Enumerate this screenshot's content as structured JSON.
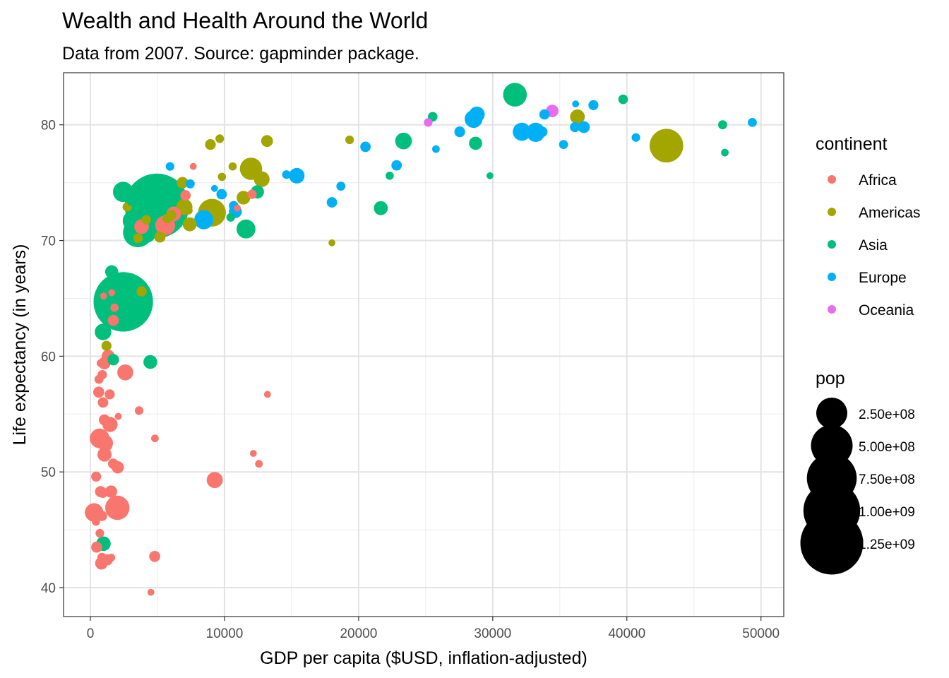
{
  "chart_data": {
    "type": "scatter",
    "title": "Wealth and Health Around the World",
    "subtitle": "Data from 2007. Source: gapminder package.",
    "xlabel": "GDP per capita ($USD, inflation-adjusted)",
    "ylabel": "Life expectancy (in years)",
    "xlim": [
      -2000,
      51700
    ],
    "ylim": [
      37.5,
      84.5
    ],
    "x_ticks": [
      0,
      10000,
      20000,
      30000,
      40000,
      50000
    ],
    "x_tick_labels": [
      "0",
      "10000",
      "20000",
      "30000",
      "40000",
      "50000"
    ],
    "y_ticks": [
      40,
      50,
      60,
      70,
      80
    ],
    "y_tick_labels": [
      "40",
      "50",
      "60",
      "70",
      "80"
    ],
    "grid": true,
    "legend_position": "right",
    "color_legend": {
      "title": "continent",
      "entries": [
        {
          "name": "Africa",
          "color": "#F8766D"
        },
        {
          "name": "Americas",
          "color": "#A3A500"
        },
        {
          "name": "Asia",
          "color": "#00BF7D"
        },
        {
          "name": "Europe",
          "color": "#00B0F6"
        },
        {
          "name": "Oceania",
          "color": "#E76BF3"
        }
      ]
    },
    "size_legend": {
      "title": "pop",
      "entries": [
        {
          "label": "2.50e+08",
          "value": 250000000
        },
        {
          "label": "5.00e+08",
          "value": 500000000
        },
        {
          "label": "7.50e+08",
          "value": 750000000
        },
        {
          "label": "1.00e+09",
          "value": 1000000000
        },
        {
          "label": "1.25e+09",
          "value": 1250000000
        }
      ]
    },
    "series": [
      {
        "name": "Africa",
        "color": "#F8766D",
        "points": [
          [
            6223,
            72.3,
            33
          ],
          [
            4797,
            42.7,
            12
          ],
          [
            1441,
            56.7,
            8
          ],
          [
            12570,
            50.7,
            2
          ],
          [
            1217,
            52.3,
            14
          ],
          [
            430,
            49.6,
            8
          ],
          [
            2042,
            50.4,
            18
          ],
          [
            706,
            44.7,
            4
          ],
          [
            1704,
            50.7,
            10
          ],
          [
            986,
            65.2,
            1
          ],
          [
            278,
            46.5,
            65
          ],
          [
            3633,
            55.3,
            4
          ],
          [
            1545,
            48.3,
            18
          ],
          [
            2082,
            54.8,
            1
          ],
          [
            5581,
            71.3,
            80
          ],
          [
            12154,
            51.6,
            1
          ],
          [
            641,
            58.0,
            5
          ],
          [
            691,
            52.9,
            77
          ],
          [
            13206,
            56.7,
            1
          ],
          [
            753,
            59.4,
            2
          ],
          [
            1327,
            60.0,
            23
          ],
          [
            943,
            56.0,
            10
          ],
          [
            579,
            46.4,
            2
          ],
          [
            1463,
            54.1,
            36
          ],
          [
            1569,
            42.6,
            2
          ],
          [
            415,
            45.7,
            3
          ],
          [
            12057,
            74.0,
            6
          ],
          [
            1045,
            59.4,
            19
          ],
          [
            759,
            48.3,
            13
          ],
          [
            1042,
            54.5,
            12
          ],
          [
            1803,
            64.2,
            3
          ],
          [
            10957,
            72.8,
            1
          ],
          [
            3820,
            71.2,
            33
          ],
          [
            824,
            42.1,
            20
          ],
          [
            4811,
            52.9,
            2
          ],
          [
            620,
            56.9,
            12
          ],
          [
            2014,
            46.9,
            135
          ],
          [
            7670,
            76.4,
            1
          ],
          [
            863,
            46.2,
            9
          ],
          [
            1598,
            65.5,
            1
          ],
          [
            1712,
            63.1,
            12
          ],
          [
            862,
            42.6,
            6
          ],
          [
            926,
            48.2,
            9
          ],
          [
            9270,
            49.3,
            44
          ],
          [
            2602,
            58.6,
            42
          ],
          [
            4513,
            39.6,
            1
          ],
          [
            1107,
            52.5,
            40
          ],
          [
            883,
            58.4,
            6
          ],
          [
            7093,
            73.9,
            10
          ],
          [
            1056,
            51.5,
            29
          ],
          [
            1271,
            42.4,
            12
          ],
          [
            470,
            43.5,
            12
          ]
        ]
      },
      {
        "name": "Americas",
        "color": "#A3A500",
        "points": [
          [
            12779,
            75.3,
            40
          ],
          [
            3822,
            65.6,
            9
          ],
          [
            9066,
            72.4,
            190
          ],
          [
            36319,
            80.7,
            33
          ],
          [
            13172,
            78.6,
            16
          ],
          [
            7007,
            72.9,
            44
          ],
          [
            9645,
            78.8,
            4
          ],
          [
            8948,
            78.3,
            11
          ],
          [
            6025,
            72.2,
            9
          ],
          [
            6873,
            75.0,
            14
          ],
          [
            5728,
            71.9,
            7
          ],
          [
            5186,
            70.3,
            13
          ],
          [
            1202,
            60.9,
            8
          ],
          [
            3548,
            70.2,
            7
          ],
          [
            7321,
            72.6,
            3
          ],
          [
            11978,
            76.2,
            108
          ],
          [
            2749,
            72.9,
            6
          ],
          [
            9809,
            75.5,
            3
          ],
          [
            4173,
            71.8,
            6
          ],
          [
            7409,
            71.4,
            28
          ],
          [
            19329,
            78.7,
            4
          ],
          [
            18009,
            69.8,
            1
          ],
          [
            42952,
            78.2,
            301
          ],
          [
            10611,
            76.4,
            3
          ],
          [
            11416,
            73.7,
            26
          ]
        ]
      },
      {
        "name": "Asia",
        "color": "#00BF7D",
        "points": [
          [
            975,
            43.8,
            32
          ],
          [
            29796,
            75.6,
            1
          ],
          [
            1391,
            64.1,
            150
          ],
          [
            1714,
            59.7,
            14
          ],
          [
            4959,
            73.0,
            1319
          ],
          [
            39725,
            82.2,
            7
          ],
          [
            2452,
            64.7,
            1110
          ],
          [
            3541,
            70.7,
            223
          ],
          [
            11606,
            71.0,
            69
          ],
          [
            4471,
            59.5,
            27
          ],
          [
            25523,
            80.7,
            7
          ],
          [
            31656,
            82.6,
            127
          ],
          [
            4519,
            72.5,
            6
          ],
          [
            1593,
            67.3,
            23
          ],
          [
            23348,
            78.6,
            49
          ],
          [
            47307,
            77.6,
            2
          ],
          [
            10461,
            72.0,
            4
          ],
          [
            12452,
            74.2,
            24
          ],
          [
            3096,
            66.8,
            3
          ],
          [
            944,
            62.1,
            47
          ],
          [
            1091,
            63.8,
            29
          ],
          [
            22316,
            75.6,
            3
          ],
          [
            2606,
            65.5,
            169
          ],
          [
            3190,
            71.7,
            91
          ],
          [
            21655,
            72.8,
            28
          ],
          [
            47143,
            80.0,
            5
          ],
          [
            3970,
            72.4,
            20
          ],
          [
            28718,
            78.4,
            23
          ],
          [
            4185,
            70.6,
            65
          ],
          [
            2442,
            74.2,
            85
          ],
          [
            3025,
            73.4,
            4
          ],
          [
            2281,
            62.7,
            22
          ]
        ]
      },
      {
        "name": "Europe",
        "color": "#00B0F6",
        "points": [
          [
            5937,
            76.4,
            4
          ],
          [
            36126,
            79.8,
            8
          ],
          [
            33693,
            79.4,
            10
          ],
          [
            7446,
            74.9,
            5
          ],
          [
            10681,
            73.0,
            7
          ],
          [
            14619,
            75.7,
            4
          ],
          [
            22833,
            76.5,
            10
          ],
          [
            35278,
            78.3,
            5
          ],
          [
            33207,
            79.3,
            61
          ],
          [
            32170,
            79.4,
            61
          ],
          [
            27538,
            79.4,
            11
          ],
          [
            18009,
            73.3,
            10
          ],
          [
            36181,
            81.8,
            1
          ],
          [
            40676,
            78.9,
            4
          ],
          [
            28570,
            80.5,
            58
          ],
          [
            9254,
            74.5,
            1
          ],
          [
            36798,
            79.8,
            16
          ],
          [
            49357,
            80.2,
            5
          ],
          [
            15390,
            75.6,
            39
          ],
          [
            20510,
            78.1,
            10
          ],
          [
            10808,
            72.5,
            22
          ],
          [
            9787,
            74.0,
            10
          ],
          [
            18678,
            74.7,
            5
          ],
          [
            25768,
            77.9,
            2
          ],
          [
            28821,
            80.9,
            40
          ],
          [
            33860,
            80.9,
            9
          ],
          [
            37506,
            81.7,
            8
          ],
          [
            8458,
            71.8,
            71
          ],
          [
            33203,
            79.4,
            61
          ]
        ]
      },
      {
        "name": "Oceania",
        "color": "#E76BF3",
        "points": [
          [
            34435,
            81.2,
            20
          ],
          [
            25185,
            80.2,
            4
          ]
        ]
      }
    ]
  }
}
